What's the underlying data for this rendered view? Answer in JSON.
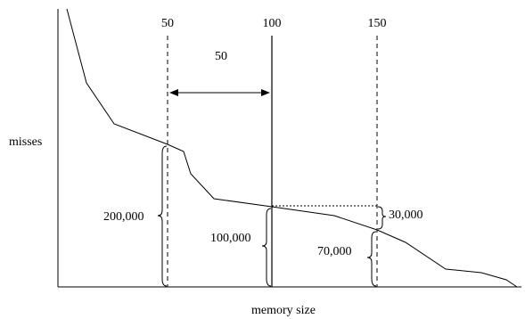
{
  "diagram": {
    "axis_labels": {
      "y": "misses",
      "x": "memory size"
    },
    "markers": [
      {
        "label": "50",
        "style": "dashed"
      },
      {
        "label": "100",
        "style": "solid"
      },
      {
        "label": "150",
        "style": "dashed"
      }
    ],
    "span": {
      "label": "50"
    },
    "braces": [
      {
        "label": "200,000"
      },
      {
        "label": "100,000"
      },
      {
        "label": "70,000"
      },
      {
        "label": "30,000"
      }
    ]
  }
}
